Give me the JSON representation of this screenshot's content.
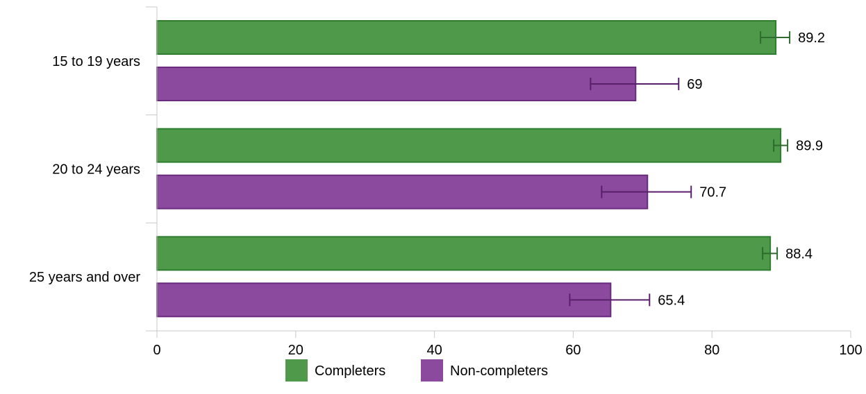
{
  "chart_data": {
    "type": "bar",
    "orientation": "horizontal",
    "categories": [
      "15 to 19 years",
      "20 to 24 years",
      "25 years and over"
    ],
    "series": [
      {
        "name": "Completers",
        "color": "#4e9a4a",
        "stroke": "#2e7d2e",
        "error_color": "#2e6b2e",
        "values": [
          89.2,
          89.9,
          88.4
        ],
        "labels": [
          "89.2",
          "89.9",
          "88.4"
        ],
        "error_low": [
          87.0,
          88.9,
          87.3
        ],
        "error_high": [
          91.2,
          90.9,
          89.4
        ]
      },
      {
        "name": "Non-completers",
        "color": "#8b4a9e",
        "stroke": "#6a2a7e",
        "error_color": "#5a1f6b",
        "values": [
          69,
          70.7,
          65.4
        ],
        "labels": [
          "69",
          "70.7",
          "65.4"
        ],
        "error_low": [
          62.5,
          64.1,
          59.5
        ],
        "error_high": [
          75.2,
          77.0,
          71.0
        ]
      }
    ],
    "xlim": [
      0,
      100
    ],
    "xticks": [
      "0",
      "20",
      "40",
      "60",
      "80",
      "100"
    ],
    "xtick_values": [
      0,
      20,
      40,
      60,
      80,
      100
    ],
    "grid": false,
    "legend_position": "bottom"
  }
}
